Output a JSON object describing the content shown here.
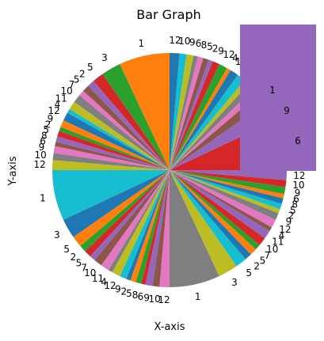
{
  "chart_data": {
    "type": "pie",
    "title": "Bar Graph",
    "xlabel": "X-axis",
    "ylabel": "Y-axis",
    "start_angle_deg": 0,
    "direction": "counterclockwise",
    "colors": [
      "#d62728",
      "#9467bd",
      "#8c564b",
      "#e377c2",
      "#7f7f7f",
      "#bcbd22",
      "#17becf",
      "#1f77b4",
      "#ff7f0e",
      "#2ca02c"
    ],
    "overlay_color": "#9467bd",
    "slice_labels": [
      "1",
      "3",
      "5",
      "2",
      "5",
      "7",
      "10",
      "11",
      "4",
      "12",
      "9",
      "2",
      "5",
      "8",
      "6",
      "9",
      "10",
      "12",
      "1",
      "3",
      "5",
      "2",
      "5",
      "7",
      "10",
      "11",
      "4",
      "12",
      "9",
      "2",
      "5",
      "8",
      "6",
      "9",
      "10",
      "12",
      "1",
      "3",
      "5",
      "2",
      "5",
      "7",
      "10",
      "11",
      "4",
      "12",
      "9",
      "2",
      "5",
      "8",
      "6",
      "9",
      "10",
      "12",
      "1",
      "3",
      "5",
      "2",
      "5",
      "7",
      "10",
      "11",
      "4",
      "12",
      "9",
      "2",
      "5",
      "8",
      "6",
      "9",
      "10",
      "12"
    ],
    "values": [
      36,
      14,
      8,
      5,
      5,
      4,
      6,
      6,
      3,
      6,
      5,
      3,
      4,
      4,
      3,
      5,
      5,
      7,
      36,
      14,
      8,
      5,
      5,
      4,
      6,
      6,
      3,
      6,
      5,
      3,
      4,
      4,
      3,
      5,
      5,
      7,
      36,
      14,
      8,
      5,
      5,
      4,
      6,
      6,
      3,
      6,
      5,
      3,
      4,
      4,
      3,
      5,
      5,
      7,
      36,
      14,
      8,
      5,
      5,
      4,
      6,
      6,
      3,
      6,
      5,
      3,
      4,
      4,
      3,
      5,
      5,
      7
    ],
    "overlay_labels": [
      "1",
      "9",
      "6"
    ]
  }
}
